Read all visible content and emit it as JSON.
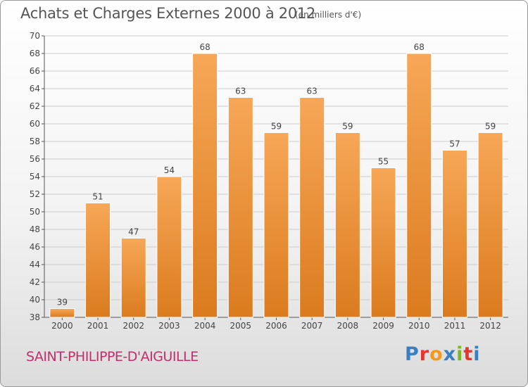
{
  "header": {
    "title": "Achats et Charges Externes 2000 à 2012",
    "subtitle": "(en milliers d'€)"
  },
  "footer": {
    "commune": "SAINT-PHILIPPE-D'AIGUILLE",
    "logo_text": "Proxiti",
    "logo_colors": [
      "#3a7fc1",
      "#e5352e",
      "#f29a1d",
      "#3a7fc1",
      "#7db62d",
      "#e5352e",
      "#3a7fc1"
    ]
  },
  "colors": {
    "bar_light": "#f7a757",
    "bar_dark": "#db7b1e",
    "grid": "#cccccc",
    "axis": "#555555"
  },
  "chart_data": {
    "type": "bar",
    "title": "Achats et Charges Externes 2000 à 2012",
    "subtitle": "(en milliers d'€)",
    "xlabel": "",
    "ylabel": "",
    "categories": [
      "2000",
      "2001",
      "2002",
      "2003",
      "2004",
      "2005",
      "2006",
      "2007",
      "2008",
      "2009",
      "2010",
      "2011",
      "2012"
    ],
    "values": [
      39,
      51,
      47,
      54,
      68,
      63,
      59,
      63,
      59,
      55,
      68,
      57,
      59
    ],
    "ylim": [
      38,
      70
    ],
    "yticks": [
      "38",
      "40",
      "42",
      "44",
      "46",
      "48",
      "50",
      "52",
      "54",
      "56",
      "58",
      "60",
      "62",
      "64",
      "66",
      "68",
      "70"
    ],
    "grid": true,
    "legend": "none"
  }
}
